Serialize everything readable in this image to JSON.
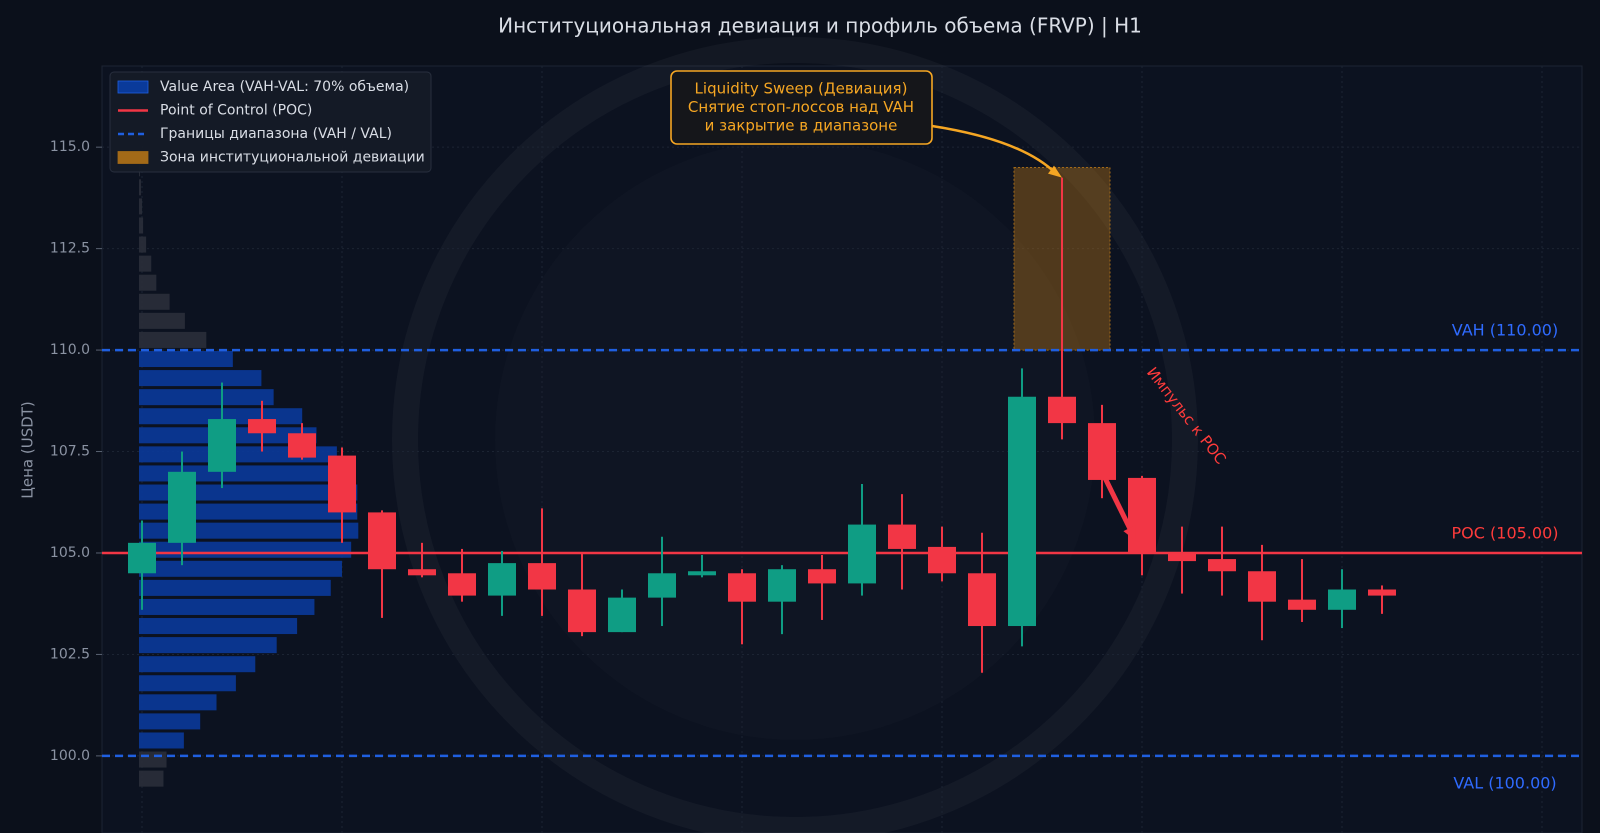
{
  "chart_data": {
    "type": "candlestick",
    "title": "Институциональная девиация и профиль объема (FRVP) | H1",
    "y_label": "Цена (USDT)",
    "x": [
      0,
      1,
      2,
      3,
      4,
      5,
      6,
      7,
      8,
      9,
      10,
      11,
      12,
      13,
      14,
      15,
      16,
      17,
      18,
      19,
      20,
      21,
      22,
      23,
      24,
      25,
      26,
      27,
      28,
      29,
      30,
      31
    ],
    "open": [
      104.5,
      105.25,
      107.0,
      108.3,
      107.95,
      107.4,
      106.0,
      104.6,
      104.5,
      103.95,
      104.75,
      104.1,
      103.05,
      103.9,
      104.45,
      104.5,
      103.8,
      104.6,
      104.25,
      105.7,
      105.15,
      104.5,
      103.2,
      108.85,
      108.2,
      106.85,
      105.0,
      104.85,
      104.55,
      103.85,
      103.6,
      104.1
    ],
    "high": [
      105.8,
      107.5,
      109.2,
      108.75,
      108.2,
      107.6,
      106.05,
      105.25,
      105.1,
      105.05,
      106.1,
      105.0,
      104.1,
      105.4,
      104.95,
      104.6,
      104.7,
      104.95,
      106.7,
      106.45,
      105.65,
      105.5,
      109.55,
      114.25,
      108.65,
      106.9,
      105.65,
      105.65,
      105.2,
      104.85,
      104.6,
      104.2
    ],
    "low": [
      103.6,
      104.7,
      106.6,
      107.5,
      107.3,
      105.25,
      103.4,
      104.4,
      103.8,
      103.45,
      103.45,
      102.95,
      103.05,
      103.2,
      104.4,
      102.75,
      103.0,
      103.35,
      103.95,
      104.1,
      104.3,
      102.05,
      102.7,
      107.8,
      106.35,
      104.45,
      104.0,
      103.95,
      102.85,
      103.3,
      103.15,
      103.5
    ],
    "close": [
      105.25,
      107.0,
      108.3,
      107.95,
      107.35,
      106.0,
      104.6,
      104.45,
      103.95,
      104.75,
      104.1,
      103.05,
      103.9,
      104.5,
      104.55,
      103.8,
      104.6,
      104.25,
      105.7,
      105.1,
      104.5,
      103.2,
      108.85,
      108.2,
      106.8,
      105.0,
      104.8,
      104.55,
      103.8,
      103.6,
      104.1,
      103.95
    ],
    "up_color": "#0f9d84",
    "down_color": "#f23645",
    "xlim": [
      -1,
      36
    ],
    "xticks": [
      0,
      5,
      10,
      15,
      20,
      25,
      30,
      35
    ],
    "ylim": [
      98.1,
      117.0
    ],
    "yticks": [
      {
        "value": 100,
        "label": "100.0"
      },
      102.5,
      {
        "value": 105,
        "label": "105.0"
      },
      107.5,
      {
        "value": 110,
        "label": "110.0"
      },
      112.5,
      {
        "value": 115,
        "label": "115.0"
      }
    ],
    "grid": true,
    "profile": {
      "levels": [
        99.44,
        99.91,
        100.38,
        100.85,
        101.32,
        101.79,
        102.26,
        102.73,
        103.2,
        103.67,
        104.14,
        104.61,
        105.08,
        105.55,
        106.02,
        106.49,
        106.96,
        107.43,
        107.9,
        108.37,
        108.84,
        109.31,
        109.78,
        110.25,
        110.72,
        111.19,
        111.66,
        112.13,
        112.6,
        113.07,
        113.54,
        114.01,
        114.48
      ],
      "volumes": [
        24,
        27,
        44,
        60,
        76,
        95,
        114,
        135,
        155,
        172,
        188,
        199,
        208,
        215,
        214,
        214,
        212,
        194,
        174,
        160,
        132,
        120,
        92,
        66,
        45,
        30,
        17,
        12,
        7,
        4,
        3,
        2,
        1
      ],
      "va_color": "#0a3a9a",
      "out_color": "#2a2f3a"
    },
    "levels": [
      {
        "label": "VAH (110.00)",
        "value": 110,
        "color": "#1f5fe0",
        "dashed": true
      },
      {
        "label": "POC (105.00)",
        "value": 105,
        "color": "#f23645",
        "dashed": false
      },
      {
        "label": "VAL (100.00)",
        "value": 100,
        "color": "#1f5fe0",
        "dashed": true
      }
    ],
    "zone": {
      "x": [
        21.8,
        24.2
      ],
      "y": [
        110,
        114.5
      ],
      "color": "#a36a18"
    },
    "legend": [
      {
        "name": "Value Area (VAH-VAL: 70% объема)",
        "color": "#0a3a9a"
      },
      {
        "name": "Point of Control (POC)",
        "color": "#f23645"
      },
      {
        "name": "Границы диапазона (VAH / VAL)",
        "color": "#1f5fe0"
      },
      {
        "name": "Зона институциональной девиации",
        "color": "#a36a18"
      }
    ],
    "annotation": {
      "lines": [
        "Liquidity Sweep (Девиация)",
        "Снятие стоп-лоссов над VAH",
        "и закрытие в диапазоне"
      ],
      "color": "#f5a623"
    },
    "impulse_label": "Импульс к POC"
  }
}
